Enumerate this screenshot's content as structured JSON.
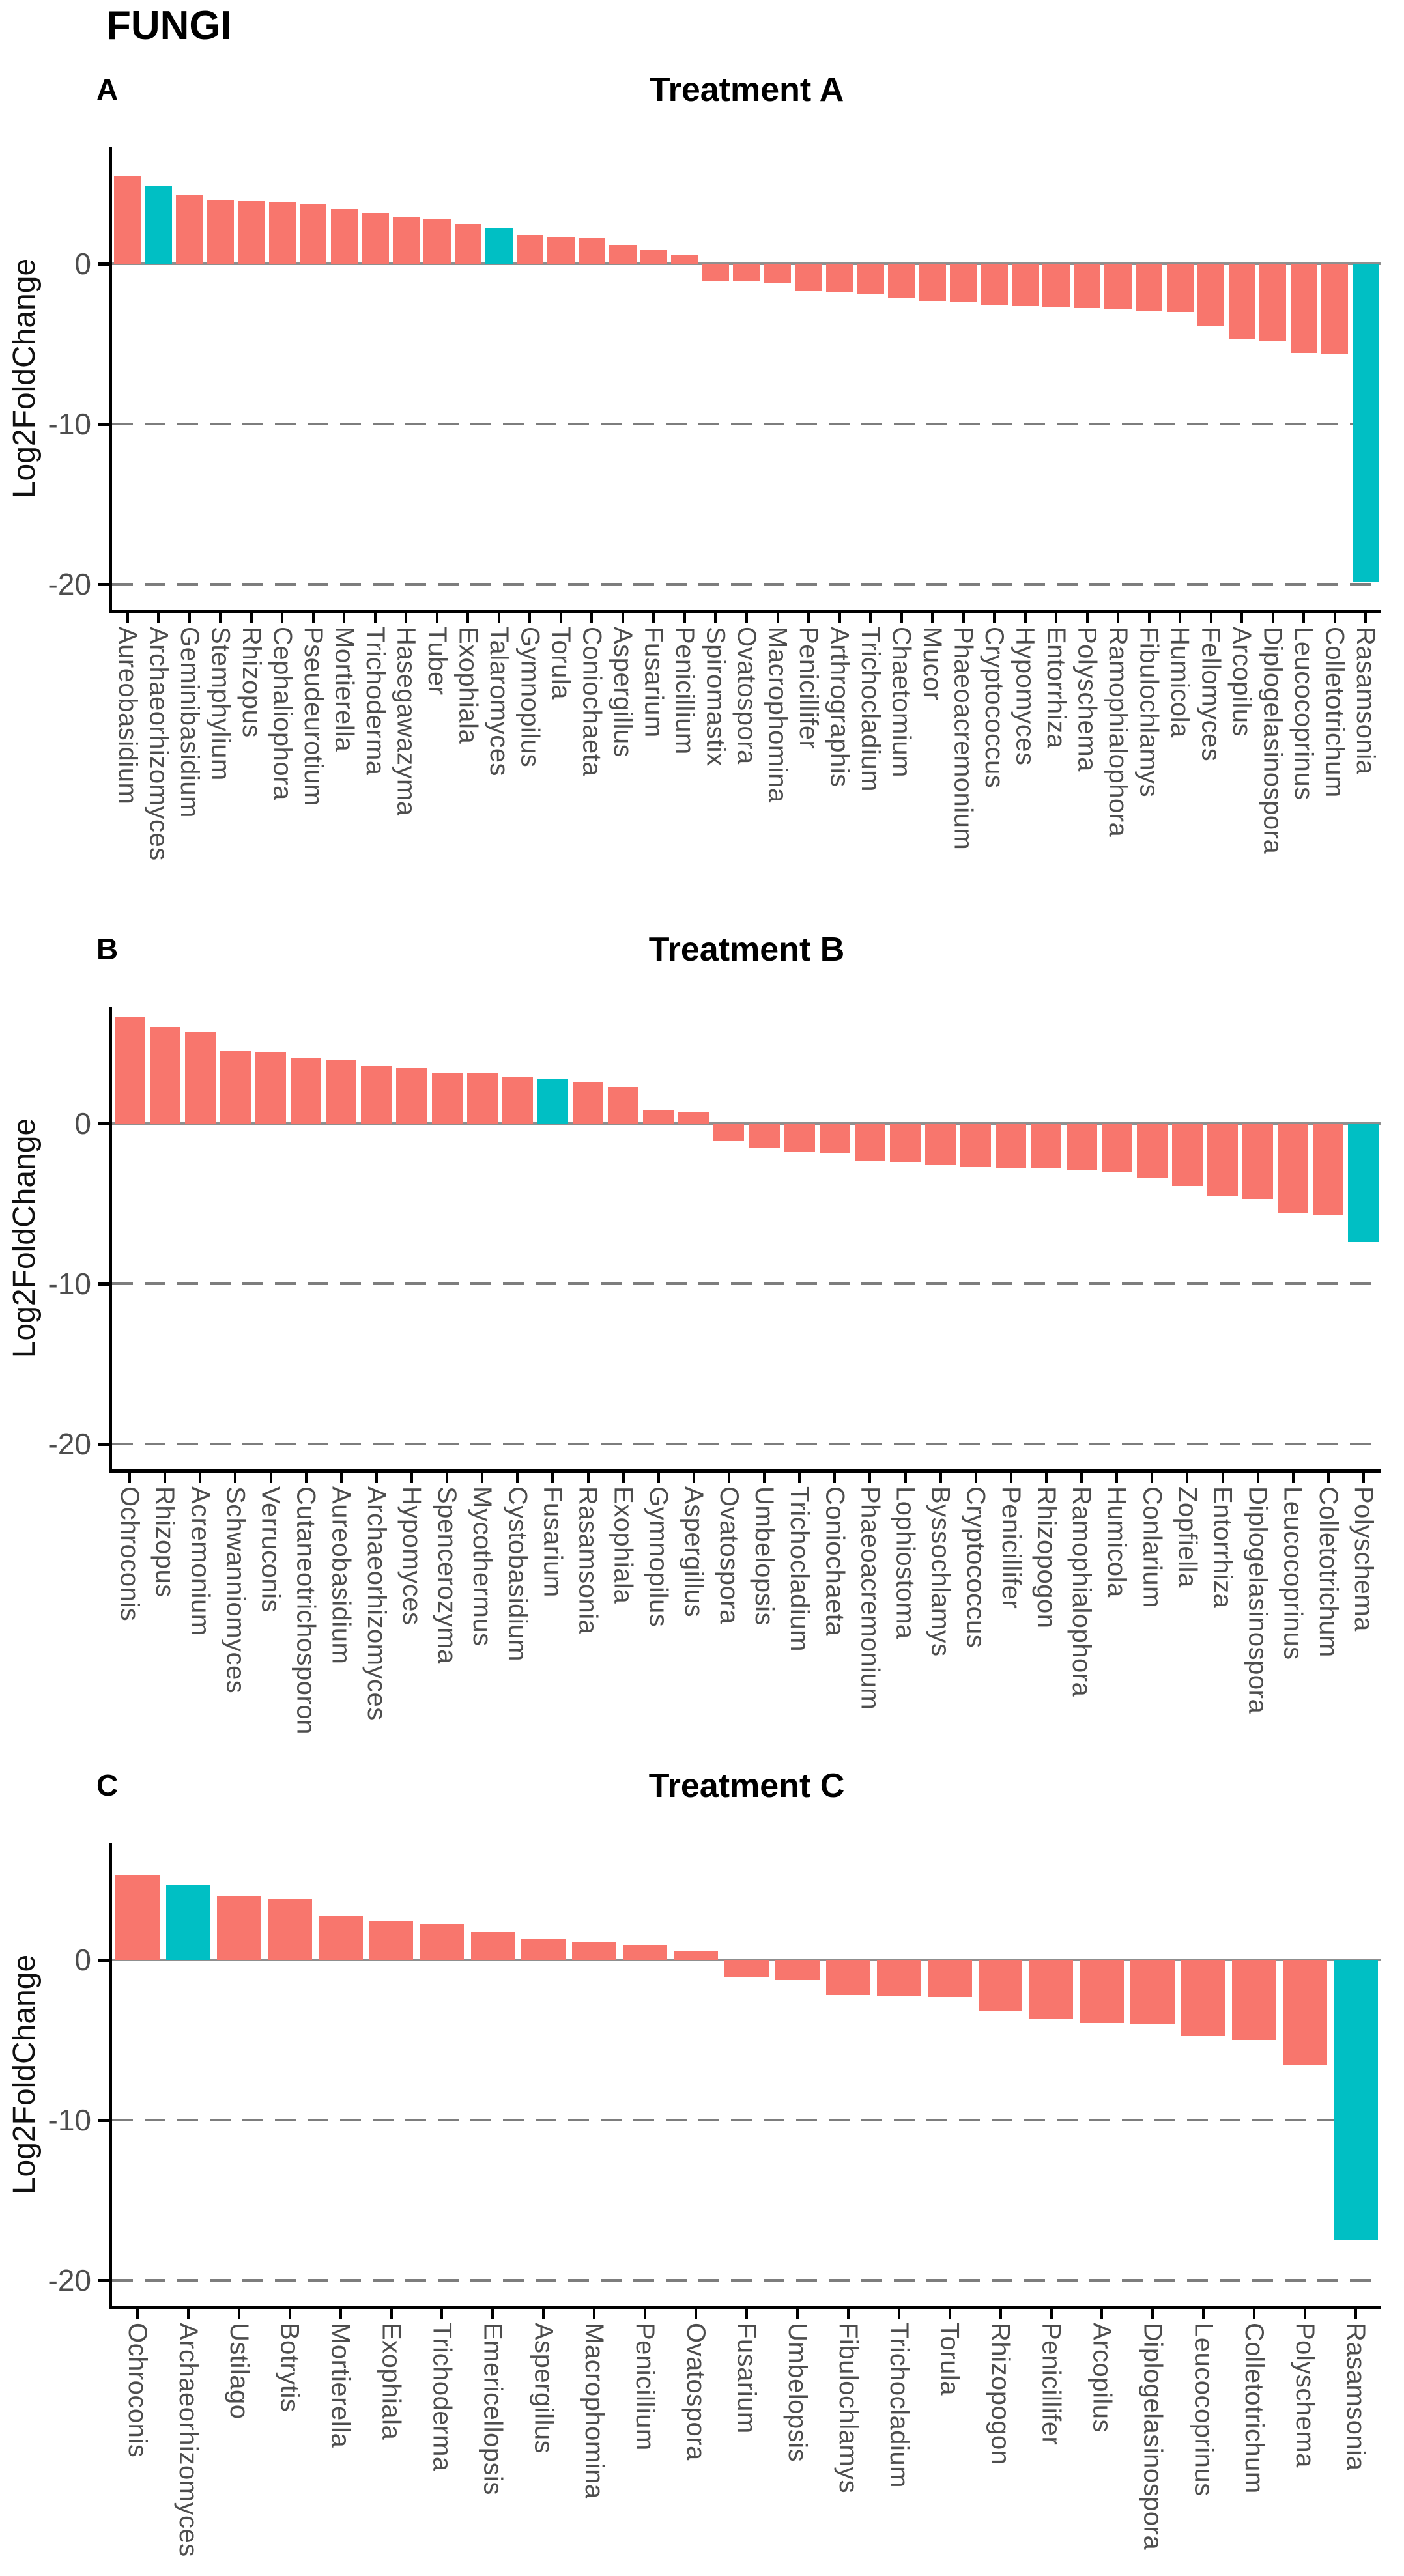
{
  "figure": {
    "title": "FUNGI",
    "ylabel": "Log2FoldChange",
    "colors": {
      "bar_default": "#F8766D",
      "bar_highlight": "#00BFC4",
      "grid_dashed": "#7D7D7D",
      "zero_line": "#8F8F8F",
      "axis": "#000000",
      "tick_label": "#4D4D4D"
    }
  },
  "chart_data": [
    {
      "type": "bar",
      "panel": "A",
      "title": "Treatment A",
      "ylabel": "Log2FoldChange",
      "ylim": [
        -21.6,
        7.3
      ],
      "yticks": [
        0,
        -10,
        -20
      ],
      "dashed_gridlines": [
        -10,
        -20
      ],
      "grid": "partial-dashed",
      "legend_position": "none",
      "categories": [
        "Aureobasidium",
        "Archaeorhizomyces",
        "Geminibasidium",
        "Stemphylium",
        "Rhizopus",
        "Cephaliophora",
        "Pseudeurotium",
        "Mortierella",
        "Trichoderma",
        "Hasegawazyma",
        "Tuber",
        "Exophiala",
        "Talaromyces",
        "Gymnopilus",
        "Torula",
        "Coniochaeta",
        "Aspergillus",
        "Fusarium",
        "Penicillium",
        "Spiromastix",
        "Ovatospora",
        "Macrophomina",
        "Penicillifer",
        "Arthrographis",
        "Trichocladium",
        "Chaetomium",
        "Mucor",
        "Phaeoacremonium",
        "Cryptococcus",
        "Hypomyces",
        "Entorrhiza",
        "Polyschema",
        "Ramophialophora",
        "Fibulochlamys",
        "Humicola",
        "Fellomyces",
        "Arcopilus",
        "Diplogelasinospora",
        "Leucocoprinus",
        "Colletotrichum",
        "Rasamsonia"
      ],
      "values": [
        5.5,
        4.85,
        4.3,
        4.0,
        3.95,
        3.9,
        3.75,
        3.45,
        3.2,
        2.95,
        2.8,
        2.5,
        2.25,
        1.8,
        1.7,
        1.6,
        1.2,
        0.85,
        0.6,
        -1.05,
        -1.1,
        -1.2,
        -1.7,
        -1.75,
        -1.85,
        -2.1,
        -2.3,
        -2.35,
        -2.55,
        -2.65,
        -2.7,
        -2.75,
        -2.8,
        -2.9,
        -3.0,
        -3.85,
        -4.65,
        -4.8,
        -5.55,
        -5.65,
        -19.9
      ],
      "highlighted": [
        "Archaeorhizomyces",
        "Talaromyces",
        "Rasamsonia"
      ]
    },
    {
      "type": "bar",
      "panel": "B",
      "title": "Treatment B",
      "ylabel": "Log2FoldChange",
      "ylim": [
        -21.6,
        7.3
      ],
      "yticks": [
        0,
        -10,
        -20
      ],
      "dashed_gridlines": [
        -10,
        -20
      ],
      "grid": "partial-dashed",
      "legend_position": "none",
      "categories": [
        "Ochroconis",
        "Rhizopus",
        "Acremonium",
        "Schwanniomyces",
        "Verruconis",
        "Cutaneotrichosporon",
        "Aureobasidium",
        "Archaeorhizomyces",
        "Hypomyces",
        "Spencerozyma",
        "Mycothermus",
        "Cystobasidium",
        "Fusarium",
        "Rasamsonia",
        "Exophiala",
        "Gymnopilus",
        "Aspergillus",
        "Ovatospora",
        "Umbelopsis",
        "Trichocladium",
        "Coniochaeta",
        "Phaeoacremonium",
        "Lophiostoma",
        "Byssochlamys",
        "Cryptococcus",
        "Penicillifer",
        "Rhizopogon",
        "Ramophialophora",
        "Humicola",
        "Conlarium",
        "Zopfiella",
        "Entorrhiza",
        "Diplogelasinospora",
        "Leucocoprinus",
        "Colletotrichum",
        "Polyschema"
      ],
      "values": [
        6.7,
        6.05,
        5.7,
        4.55,
        4.5,
        4.1,
        4.0,
        3.6,
        3.5,
        3.2,
        3.15,
        2.9,
        2.8,
        2.6,
        2.3,
        0.85,
        0.75,
        -1.1,
        -1.5,
        -1.75,
        -1.8,
        -2.3,
        -2.4,
        -2.6,
        -2.7,
        -2.75,
        -2.8,
        -2.9,
        -3.0,
        -3.4,
        -3.9,
        -4.5,
        -4.7,
        -5.6,
        -5.7,
        -7.4
      ],
      "highlighted": [
        "Fusarium",
        "Polyschema"
      ]
    },
    {
      "type": "bar",
      "panel": "C",
      "title": "Treatment C",
      "ylabel": "Log2FoldChange",
      "ylim": [
        -21.6,
        7.3
      ],
      "yticks": [
        0,
        -10,
        -20
      ],
      "dashed_gridlines": [
        -10,
        -20
      ],
      "grid": "partial-dashed",
      "legend_position": "none",
      "categories": [
        "Ochroconis",
        "Archaeorhizomyces",
        "Ustilago",
        "Botrytis",
        "Mortierella",
        "Exophiala",
        "Trichoderma",
        "Emericellopsis",
        "Aspergillus",
        "Macrophomina",
        "Penicillium",
        "Ovatospora",
        "Fusarium",
        "Umbelopsis",
        "Fibulochlamys",
        "Trichocladium",
        "Torula",
        "Rhizopogon",
        "Penicillifer",
        "Arcopilus",
        "Diplogelasinospora",
        "Leucocoprinus",
        "Colletotrichum",
        "Polyschema",
        "Rasamsonia"
      ],
      "values": [
        5.35,
        4.7,
        4.0,
        3.85,
        2.75,
        2.4,
        2.25,
        1.75,
        1.3,
        1.15,
        0.95,
        0.55,
        -1.1,
        -1.25,
        -2.2,
        -2.25,
        -2.3,
        -3.2,
        -3.7,
        -3.95,
        -4.0,
        -4.75,
        -5.0,
        -6.55,
        -17.5
      ],
      "highlighted": [
        "Archaeorhizomyces",
        "Rasamsonia"
      ]
    }
  ]
}
